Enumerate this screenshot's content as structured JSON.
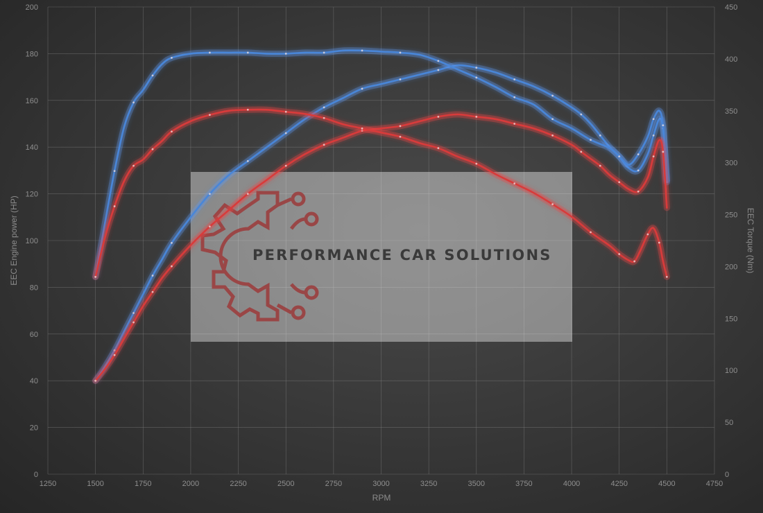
{
  "chart_data": {
    "type": "line",
    "xlabel": "RPM",
    "ylabel_left": "EEC Engine power (HP)",
    "ylabel_right": "EEC Torque (Nm)",
    "xlim": [
      1250,
      4750
    ],
    "ylim_left": [
      0,
      200
    ],
    "ylim_right": [
      0,
      450
    ],
    "x_ticks": [
      1250,
      1500,
      1750,
      2000,
      2250,
      2500,
      2750,
      3000,
      3250,
      3500,
      3750,
      4000,
      4250,
      4500,
      4750
    ],
    "y_ticks_left": [
      0,
      20,
      40,
      60,
      80,
      100,
      120,
      140,
      160,
      180,
      200
    ],
    "y_ticks_right": [
      0,
      50,
      100,
      150,
      200,
      250,
      300,
      350,
      400,
      450
    ],
    "grid": true,
    "watermark": "PERFORMANCE CAR SOLUTIONS",
    "series": [
      {
        "color": "#4a86d8",
        "axis": "left",
        "x": [
          1500,
          1550,
          1600,
          1650,
          1700,
          1750,
          1800,
          1850,
          1900,
          2000,
          2100,
          2200,
          2300,
          2400,
          2500,
          2600,
          2700,
          2800,
          2900,
          3000,
          3100,
          3200,
          3300,
          3400,
          3500,
          3600,
          3700,
          3800,
          3900,
          4000,
          4050,
          4100,
          4150,
          4200,
          4250,
          4300,
          4350,
          4400,
          4430,
          4460,
          4480,
          4500
        ],
        "y": [
          40,
          46,
          53,
          61,
          69,
          77,
          85,
          92,
          99,
          110,
          120,
          128,
          134,
          140,
          146,
          152,
          157,
          161,
          165,
          167,
          169,
          171,
          173,
          175,
          174,
          172,
          169,
          166,
          162,
          157,
          154,
          150,
          145,
          140,
          136,
          131,
          130,
          137,
          145,
          152,
          148,
          125
        ]
      },
      {
        "color": "#4a86d8",
        "axis": "right",
        "x": [
          1500,
          1550,
          1600,
          1650,
          1700,
          1750,
          1800,
          1850,
          1900,
          2000,
          2100,
          2200,
          2300,
          2400,
          2500,
          2600,
          2700,
          2800,
          2900,
          3000,
          3100,
          3200,
          3300,
          3400,
          3500,
          3600,
          3700,
          3800,
          3900,
          4000,
          4100,
          4200,
          4250,
          4300,
          4350,
          4400,
          4430,
          4460,
          4480,
          4500
        ],
        "y": [
          190,
          242,
          292,
          334,
          358,
          370,
          384,
          395,
          401,
          405,
          406,
          406,
          406,
          405,
          405,
          406,
          406,
          408,
          408,
          407,
          406,
          404,
          398,
          390,
          382,
          373,
          363,
          356,
          342,
          333,
          322,
          314,
          306,
          298,
          308,
          325,
          342,
          350,
          336,
          283
        ]
      },
      {
        "color": "#d83a3a",
        "axis": "left",
        "x": [
          1500,
          1550,
          1600,
          1650,
          1700,
          1750,
          1800,
          1850,
          1900,
          2000,
          2100,
          2200,
          2300,
          2400,
          2500,
          2600,
          2700,
          2800,
          2900,
          3000,
          3100,
          3200,
          3300,
          3400,
          3500,
          3600,
          3700,
          3800,
          3900,
          4000,
          4050,
          4100,
          4150,
          4200,
          4250,
          4300,
          4350,
          4400,
          4430,
          4460,
          4480,
          4500
        ],
        "y": [
          40,
          45,
          51,
          58,
          65,
          72,
          78,
          84,
          89,
          98,
          106,
          113,
          120,
          126,
          132,
          137,
          141,
          144,
          147,
          148,
          149,
          151,
          153,
          154,
          153,
          152,
          150,
          148,
          145,
          141,
          138,
          135,
          132,
          128,
          125,
          122,
          121,
          127,
          136,
          143,
          138,
          114
        ]
      },
      {
        "color": "#d83a3a",
        "axis": "right",
        "x": [
          1500,
          1550,
          1600,
          1650,
          1700,
          1750,
          1800,
          1850,
          1900,
          2000,
          2100,
          2200,
          2300,
          2400,
          2500,
          2600,
          2700,
          2800,
          2900,
          3000,
          3100,
          3200,
          3300,
          3400,
          3500,
          3600,
          3700,
          3800,
          3900,
          4000,
          4100,
          4200,
          4250,
          4300,
          4330,
          4360,
          4400,
          4430,
          4460,
          4480,
          4500
        ],
        "y": [
          190,
          228,
          258,
          282,
          297,
          303,
          313,
          321,
          330,
          340,
          346,
          350,
          351,
          351,
          349,
          347,
          343,
          337,
          333,
          329,
          325,
          319,
          314,
          306,
          299,
          289,
          280,
          271,
          260,
          248,
          233,
          220,
          212,
          206,
          205,
          215,
          231,
          237,
          223,
          205,
          190
        ]
      }
    ]
  }
}
